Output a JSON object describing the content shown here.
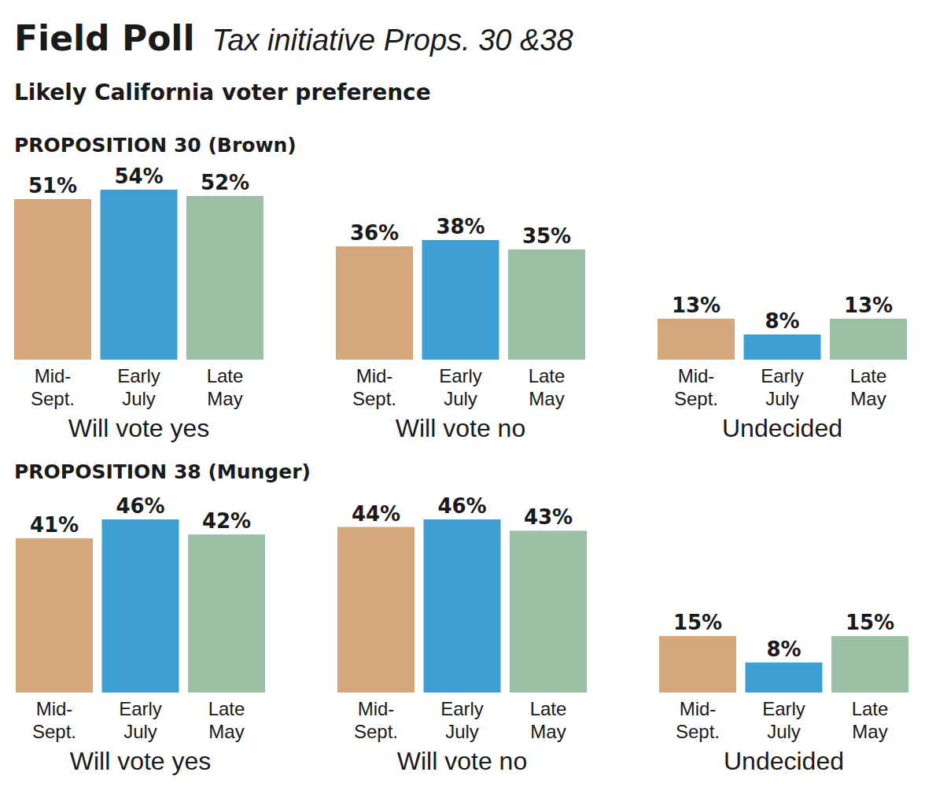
{
  "header": {
    "title": "Field Poll",
    "subtitle": "Tax initiative Props. 30 &38",
    "description": "Likely California voter preference"
  },
  "chart_data": [
    {
      "type": "bar",
      "title": "PROPOSITION 30 (Brown)",
      "categories": [
        "Will vote yes",
        "Will vote no",
        "Undecided"
      ],
      "series": [
        {
          "name": "Mid-Sept.",
          "color": "#d4a87b",
          "values": [
            51,
            36,
            13
          ],
          "value_labels": [
            "51%",
            "36%",
            "13%"
          ]
        },
        {
          "name": "Early July",
          "color": "#3d9fd3",
          "values": [
            54,
            38,
            8
          ],
          "value_labels": [
            "54%",
            "38%",
            "8%"
          ]
        },
        {
          "name": "Late May",
          "color": "#9cc1a6",
          "values": [
            52,
            35,
            13
          ],
          "value_labels": [
            "52%",
            "35%",
            "13%"
          ]
        }
      ],
      "ylim": [
        0,
        55
      ],
      "data_labels": true,
      "tick_labels": false,
      "grid": false
    },
    {
      "type": "bar",
      "title": "PROPOSITION 38 (Munger)",
      "categories": [
        "Will vote yes",
        "Will vote no",
        "Undecided"
      ],
      "series": [
        {
          "name": "Mid-Sept.",
          "color": "#d4a87b",
          "values": [
            41,
            44,
            15
          ],
          "value_labels": [
            "41%",
            "44%",
            "15%"
          ]
        },
        {
          "name": "Early July",
          "color": "#3d9fd3",
          "values": [
            46,
            46,
            8
          ],
          "value_labels": [
            "46%",
            "46%",
            "8%"
          ]
        },
        {
          "name": "Late May",
          "color": "#9cc1a6",
          "values": [
            42,
            43,
            15
          ],
          "value_labels": [
            "42%",
            "43%",
            "15%"
          ]
        }
      ],
      "ylim": [
        0,
        46
      ],
      "data_labels": true,
      "tick_labels": false,
      "grid": false
    }
  ]
}
